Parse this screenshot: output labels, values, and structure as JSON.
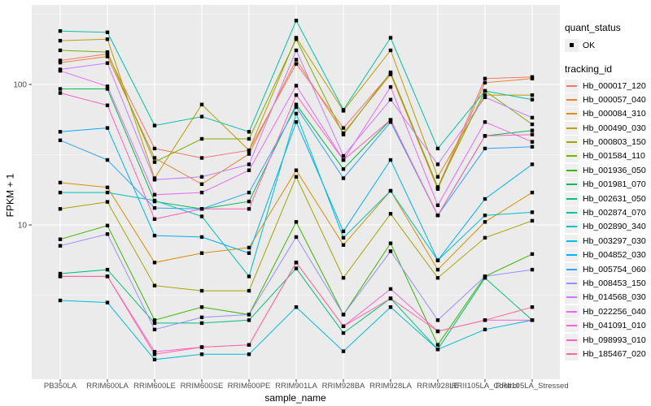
{
  "figure": {
    "panel_bg": "#EBEBEB",
    "grid_color": "#FFFFFF",
    "tick_color": "#333333",
    "tick_label_color": "#4D4D4D",
    "point_color": "#000000"
  },
  "axes": {
    "y_scale": "log10",
    "y_tick_labels": [
      "100",
      "10"
    ],
    "y_tick_values": [
      100,
      10
    ],
    "y_minor_gridline_values": [
      316.2,
      31.62,
      3.162
    ]
  },
  "legend": {
    "quant_status": {
      "title": "quant_status",
      "items": [
        {
          "label": "OK",
          "glyph": "black-square-point"
        }
      ]
    },
    "tracking_id_title": "tracking_id"
  },
  "chart_data": {
    "type": "line",
    "title": "",
    "xlabel": "sample_name",
    "ylabel": "FPKM + 1",
    "yscale": "log10",
    "ylim": [
      1,
      320
    ],
    "grid": "on",
    "legend_position": "right",
    "point_shape": "filled-square",
    "categories": [
      "PB350LA",
      "RRIM600LA",
      "RRIM600LE",
      "RRIM600SE",
      "RRIM600PE",
      "RRIM901LA",
      "RRIM928BA",
      "RRIM928LA",
      "RRIM928LE",
      "RRII105LA_Control",
      "RRII105LA_Stressed"
    ],
    "series": [
      {
        "name": "Hb_000017_120",
        "color": "#F8766D",
        "values": [
          148,
          165,
          35,
          30,
          34,
          140,
          49,
          120,
          18.5,
          110,
          113
        ]
      },
      {
        "name": "Hb_000057_040",
        "color": "#EA8331",
        "values": [
          143,
          158,
          30,
          19.5,
          32,
          150,
          45,
          118,
          18,
          103,
          110
        ]
      },
      {
        "name": "Hb_000084_310",
        "color": "#D89000",
        "values": [
          20,
          18.5,
          5.4,
          6.3,
          6.9,
          24.5,
          7.2,
          17.5,
          4.8,
          10.5,
          17
        ]
      },
      {
        "name": "Hb_000490_030",
        "color": "#C09B00",
        "values": [
          205,
          210,
          21.5,
          72,
          34,
          215,
          65,
          175,
          22,
          84,
          84
        ]
      },
      {
        "name": "Hb_000803_150",
        "color": "#A3A500",
        "values": [
          13,
          14.6,
          3.7,
          3.4,
          3.4,
          22,
          4.2,
          12,
          4.2,
          8.1,
          10.7
        ]
      },
      {
        "name": "Hb_001584_110",
        "color": "#7CAE00",
        "values": [
          175,
          170,
          28,
          41,
          41,
          210,
          44,
          122,
          18.6,
          90,
          52
        ]
      },
      {
        "name": "Hb_001936_050",
        "color": "#39B600",
        "values": [
          7.9,
          9.9,
          2.1,
          2.6,
          2.3,
          10.5,
          2.3,
          7.4,
          1.4,
          4.3,
          6.2
        ]
      },
      {
        "name": "Hb_001981_070",
        "color": "#00BB4E",
        "values": [
          93,
          93,
          14.7,
          13,
          14.7,
          72,
          25,
          56,
          11.7,
          43,
          47
        ]
      },
      {
        "name": "Hb_002631_050",
        "color": "#00BF7D",
        "values": [
          4.5,
          4.8,
          2.0,
          2.0,
          2.1,
          4.9,
          1.7,
          3.0,
          1.3,
          4.2,
          2.1
        ]
      },
      {
        "name": "Hb_002874_070",
        "color": "#00C1A3",
        "values": [
          240,
          235,
          51,
          59,
          46,
          285,
          66,
          215,
          35,
          90,
          78
        ]
      },
      {
        "name": "Hb_002890_340",
        "color": "#00BFC4",
        "values": [
          17,
          17,
          14.9,
          11.5,
          4.3,
          62,
          8.1,
          17.5,
          5.6,
          11.7,
          12.3
        ]
      },
      {
        "name": "Hb_003297_030",
        "color": "#00BAE0",
        "values": [
          2.9,
          2.8,
          1.1,
          1.2,
          1.2,
          2.6,
          1.26,
          2.6,
          1.3,
          1.8,
          2.1
        ]
      },
      {
        "name": "Hb_004852_030",
        "color": "#00B0F6",
        "values": [
          46,
          49,
          8.4,
          8.2,
          6.3,
          54,
          9,
          29,
          5.6,
          15.3,
          27
        ]
      },
      {
        "name": "Hb_005754_060",
        "color": "#35A2FF",
        "values": [
          40,
          29,
          13.2,
          13,
          17,
          69,
          21.5,
          54,
          11.7,
          35,
          36
        ]
      },
      {
        "name": "Hb_008453_150",
        "color": "#9590FF",
        "values": [
          7.1,
          8.6,
          1.8,
          2.2,
          2.3,
          8.2,
          2.3,
          6.5,
          2.1,
          4.3,
          4.8
        ]
      },
      {
        "name": "Hb_014568_030",
        "color": "#C77CFF",
        "values": [
          128,
          142,
          21,
          22,
          27,
          175,
          31,
          78,
          27,
          81,
          58
        ]
      },
      {
        "name": "Hb_022256_040",
        "color": "#E76BF3",
        "values": [
          125,
          97,
          16.4,
          17,
          24.5,
          98,
          29,
          96,
          13.8,
          54,
          39
        ]
      },
      {
        "name": "Hb_041091_010",
        "color": "#FA62DB",
        "values": [
          4.3,
          4.3,
          1.25,
          1.35,
          1.4,
          5.4,
          1.9,
          3.5,
          1.75,
          2.1,
          2.1
        ]
      },
      {
        "name": "Hb_098993_010",
        "color": "#FF62BC",
        "values": [
          87,
          71,
          11,
          13,
          13,
          84,
          29,
          56,
          11.7,
          43,
          44
        ]
      },
      {
        "name": "Hb_185467_020",
        "color": "#FF6A98",
        "values": [
          4.3,
          4.3,
          1.2,
          1.35,
          1.4,
          5.4,
          1.9,
          3.0,
          1.75,
          2.1,
          2.6
        ]
      }
    ]
  }
}
